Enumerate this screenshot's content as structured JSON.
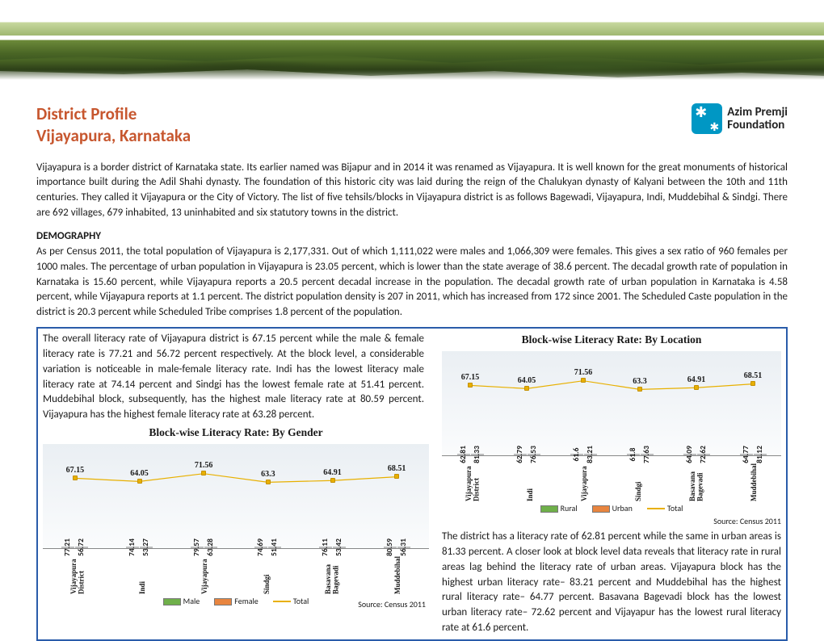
{
  "header": {
    "title_line1": "District Profile",
    "title_line2": "Vijayapura,  Karnataka",
    "logo_line1": "Azim Premji",
    "logo_line2": "Foundation"
  },
  "intro": "Vijayapura is a border district of Karnataka state. Its earlier named was Bijapur and in 2014 it was renamed as Vijayapura.  It is well known for the great monuments of historical importance built during the Adil Shahi dynasty. The foundation of this historic city was laid during the reign of the Chalukyan dynasty of Kalyani between the 10th and 11th centuries. They called it Vijayapura or the City of Victory. The list of five tehsils/blocks in Vijayapura district is as follows Bagewadi, Vijayapura, Indi, Muddebihal & Sindgi. There are 692 villages, 679 inhabited, 13 uninhabited and six statutory towns in the district.",
  "demo_title": "DEMOGRAPHY",
  "demo_text": "As per Census 2011, the total population of Vijayapura is 2,177,331. Out of which 1,111,022 were males and 1,066,309 were females. This gives a sex ratio of 960 females per 1000 males. The  percentage of urban population in Vijayapura is 23.05 percent, which is lower than the state average of 38.6 percent. The decadal growth rate of population in Karnataka is 15.60 percent, while Vijayapura reports a 20.5 percent decadal increase in the population. The decadal growth rate of urban population in Karnataka is 4.58 percent, while Vijayapura reports at 1.1 percent. The district population density is 207 in 2011, which has increased from 172 since 2001. The Scheduled Caste population in the district is 20.3 percent while Scheduled Tribe comprises 1.8 percent of the population.",
  "box": {
    "para1": "The overall literacy rate of Vijayapura district is 67.15 percent while the male & female literacy rate is 77.21 and 56.72 percent respectively.  At the block level, a considerable variation is noticeable in male-female literacy rate.  Indi has the lowest literacy male literacy rate at 74.14 percent and Sindgi has the lowest female rate at 51.41 percent. Muddebihal block, subsequently, has the highest male literacy rate at 80.59 percent. Vijayapura has the highest female literacy rate at 63.28 percent.",
    "para2": "The district has a literacy rate of 62.81 percent while the same in urban areas is 81.33 percent. A closer look at block level data reveals that literacy rate in rural areas lag behind the literacy rate of urban areas. Vijayapura  block has the highest urban literacy rate– 83.21 percent and Muddebihal has the highest rural literacy rate– 64.77 percent. Basavana Bagevadi block has the lowest urban literacy rate– 72.62 percent and Vijayapur has the lowest rural literacy rate at 61.6 percent."
  },
  "source": "Source: Census 2011",
  "chart_gender": {
    "title": "Block-wise Literacy Rate: By Gender",
    "categories": [
      "Vijayapura\nDistrict",
      "Indi",
      "Vijayapura",
      "Sindgi",
      "Basavana\nBagevadi",
      "Muddebihal"
    ],
    "male": [
      77.21,
      74.14,
      79.57,
      74.69,
      76.11,
      80.59
    ],
    "female": [
      56.72,
      53.27,
      63.28,
      51.41,
      53.42,
      56.31
    ],
    "total": [
      67.15,
      64.05,
      71.56,
      63.3,
      64.91,
      68.51
    ],
    "legend": {
      "a": "Male",
      "b": "Female",
      "c": "Total"
    },
    "colors": {
      "male": "#6fb04a",
      "female": "#e8853f",
      "total": "#e8b000"
    },
    "ylim": 100
  },
  "chart_location": {
    "title": "Block-wise Literacy Rate: By Location",
    "categories": [
      "Vijayapura\nDistrict",
      "Indi",
      "Vijayapura",
      "Sindgi",
      "Basavana\nBagevadi",
      "Muddebihal"
    ],
    "rural": [
      62.81,
      62.79,
      61.6,
      61.8,
      64.09,
      64.77
    ],
    "urban": [
      81.33,
      76.53,
      83.21,
      77.63,
      72.62,
      81.12
    ],
    "total": [
      67.15,
      64.05,
      71.56,
      63.3,
      64.91,
      68.51
    ],
    "legend": {
      "a": "Rural",
      "b": "Urban",
      "c": "Total"
    },
    "colors": {
      "rural": "#6fb04a",
      "urban": "#e8853f",
      "total": "#e8b000"
    },
    "ylim": 100
  }
}
